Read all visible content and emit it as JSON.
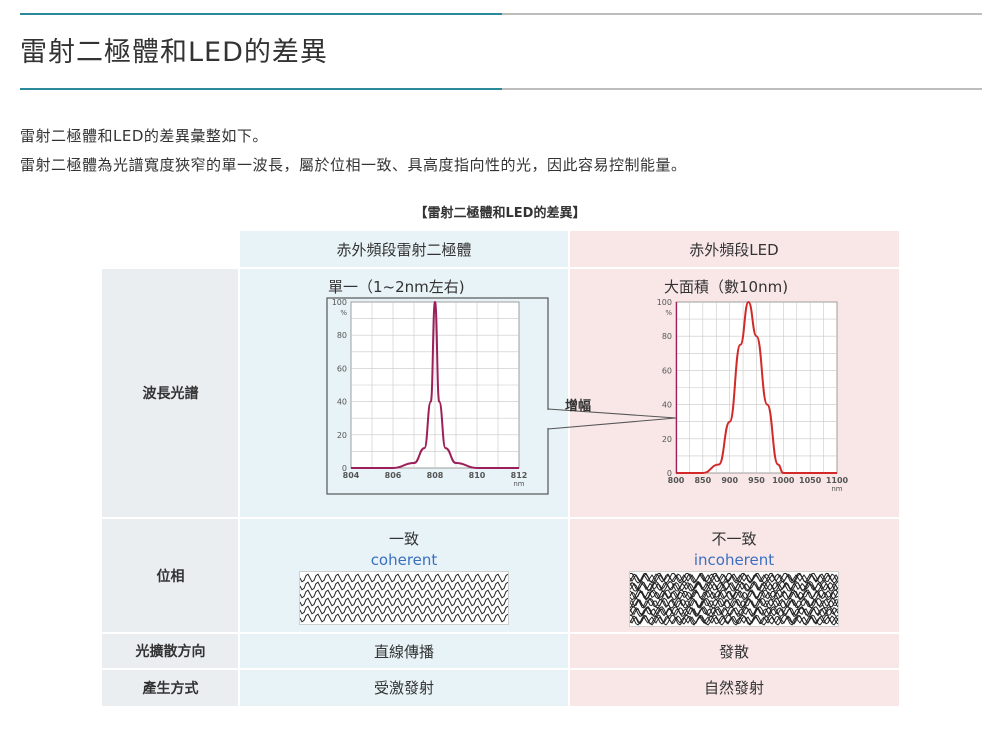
{
  "page": {
    "title": "雷射二極體和LED的差異",
    "paragraph1": "雷射二極體和LED的差異彙整如下。",
    "paragraph2": "雷射二極體為光譜寬度狹窄的單一波長，屬於位相一致、具高度指向性的光，因此容易控制能量。"
  },
  "table": {
    "caption": "【雷射二極體和LED的差異】",
    "col_headers": [
      "赤外頻段雷射二極體",
      "赤外頻段LED"
    ],
    "rows": {
      "spectrum": {
        "label": "波長光譜",
        "laser_text": "單一（1~2nm左右)",
        "led_text": "大面積（數10nm)",
        "zoom_label": "增幅"
      },
      "phase": {
        "label": "位相",
        "laser_text": "一致",
        "laser_en": "coherent",
        "led_text": "不一致",
        "led_en": "incoherent"
      },
      "direction": {
        "label": "光擴散方向",
        "laser_text": "直線傳播",
        "led_text": "發散"
      },
      "method": {
        "label": "產生方式",
        "laser_text": "受激發射",
        "led_text": "自然發射"
      }
    }
  },
  "chart_data": [
    {
      "type": "line",
      "title": "",
      "series": [
        {
          "name": "",
          "x": [
            804,
            806,
            807,
            807.5,
            807.8,
            808,
            808.2,
            808.5,
            809,
            810,
            812
          ],
          "y": [
            0,
            0,
            3,
            12,
            40,
            100,
            40,
            12,
            3,
            0,
            0
          ]
        }
      ],
      "xticks": [
        "804",
        "806",
        "808",
        "810",
        "812"
      ],
      "yticks": [
        "0",
        "20",
        "40",
        "60",
        "80",
        "100"
      ],
      "ylabel": "%",
      "xlabel": "nm",
      "xlim": [
        804,
        812
      ],
      "ylim": [
        0,
        100
      ],
      "color": "#9c1f5a",
      "grid": true
    },
    {
      "type": "line",
      "title": "",
      "series": [
        {
          "name": "",
          "x": [
            800,
            850,
            880,
            900,
            920,
            935,
            950,
            970,
            990,
            1000,
            1050,
            1100
          ],
          "y": [
            0,
            0,
            5,
            30,
            75,
            100,
            80,
            40,
            5,
            0,
            0,
            0
          ]
        }
      ],
      "xticks": [
        "800",
        "850",
        "900",
        "950",
        "1000",
        "1050",
        "1100"
      ],
      "yticks": [
        "0",
        "20",
        "40",
        "60",
        "80",
        "100"
      ],
      "ylabel": "%",
      "xlabel": "nm",
      "xlim": [
        800,
        1100
      ],
      "ylim": [
        0,
        100
      ],
      "color": "#d22a2a",
      "grid": true
    }
  ]
}
